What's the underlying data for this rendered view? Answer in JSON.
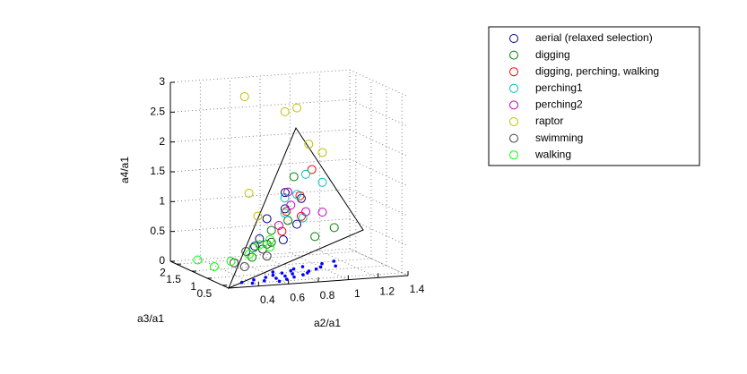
{
  "chart_data": {
    "type": "scatter3d",
    "xlabel": "a2/a1",
    "ylabel": "a3/a1",
    "zlabel": "a4/a1",
    "xlim": [
      0.2,
      1.4
    ],
    "ylim": [
      0.3,
      2.2
    ],
    "zlim": [
      0,
      3
    ],
    "xticks": [
      0.4,
      0.6,
      0.8,
      1,
      1.2,
      1.4
    ],
    "yticks": [
      0.5,
      1,
      1.5,
      2
    ],
    "zticks": [
      0,
      0.5,
      1,
      1.5,
      2,
      2.5,
      3
    ],
    "grid": true,
    "legend": "outside-top-right",
    "series": [
      {
        "name": "aerial (relaxed selection)",
        "color": "#000080",
        "x": [
          0.55,
          0.62,
          0.7,
          0.75,
          0.8,
          0.68,
          0.58,
          0.85
        ],
        "y": [
          1,
          1.1,
          0.9,
          1.2,
          1,
          0.8,
          1.3,
          1.1
        ],
        "z": [
          0.6,
          0.9,
          1.1,
          0.5,
          0.8,
          1.4,
          0.4,
          1.2
        ]
      },
      {
        "name": "digging",
        "color": "#008000",
        "x": [
          0.5,
          0.6,
          0.65,
          0.72,
          0.78,
          0.55,
          0.9,
          1.05
        ],
        "y": [
          1,
          1,
          1.1,
          0.9,
          1,
          1.2,
          0.9,
          1
        ],
        "z": [
          0.3,
          0.5,
          0.7,
          0.9,
          1.6,
          0.4,
          0.6,
          0.7
        ]
      },
      {
        "name": "digging, perching, walking",
        "color": "#ff0000",
        "x": [
          0.7,
          0.75,
          0.8,
          0.9,
          0.85
        ],
        "y": [
          1,
          1.1,
          0.9,
          1,
          1.1
        ],
        "z": [
          0.7,
          1,
          1.3,
          1.7,
          0.9
        ]
      },
      {
        "name": "perching1",
        "color": "#00bfbf",
        "x": [
          0.72,
          0.8,
          0.88,
          0.95,
          0.76,
          0.84
        ],
        "y": [
          1,
          1,
          1.1,
          0.9,
          1.2,
          1
        ],
        "z": [
          1,
          1.3,
          1.6,
          1.5,
          1.2,
          0.9
        ]
      },
      {
        "name": "perching2",
        "color": "#bf00bf",
        "x": [
          0.68,
          0.78,
          0.86,
          0.95,
          0.74
        ],
        "y": [
          1,
          1.1,
          1,
          0.9,
          1
        ],
        "z": [
          0.8,
          1.1,
          1,
          1,
          1.35
        ]
      },
      {
        "name": "raptor",
        "color": "#bfbf00",
        "x": [
          0.45,
          0.5,
          0.72,
          0.8,
          0.9,
          0.95,
          0.6
        ],
        "y": [
          1,
          1.1,
          1,
          1,
          1.1,
          0.9,
          1.3
        ],
        "z": [
          3,
          1.35,
          2.7,
          2.75,
          2.1,
          2,
          0.9
        ]
      },
      {
        "name": "swimming",
        "color": "#404040",
        "x": [
          0.4,
          0.45,
          0.5,
          0.55,
          0.6,
          0.65
        ],
        "y": [
          1.1,
          1,
          1.2,
          0.9,
          1,
          1.1
        ],
        "z": [
          0.2,
          0.15,
          0.35,
          0.45,
          0.3,
          0.5
        ]
      },
      {
        "name": "walking",
        "color": "#00ff00",
        "x": [
          0.3,
          0.35,
          0.4,
          0.48,
          0.55,
          0.6,
          0.62
        ],
        "y": [
          1.8,
          1.5,
          1.2,
          1,
          1,
          0.9,
          1
        ],
        "z": [
          0.1,
          0.05,
          0.2,
          0.35,
          0.5,
          0.6,
          0.45
        ]
      }
    ],
    "floor_points": {
      "color": "#0000ff",
      "x": [
        0.35,
        0.4,
        0.45,
        0.5,
        0.55,
        0.6,
        0.62,
        0.65,
        0.68,
        0.7,
        0.72,
        0.75,
        0.78,
        0.8,
        0.82,
        0.85,
        0.88,
        0.9,
        0.95,
        1,
        1.05,
        1.1,
        1.15,
        0.58,
        0.66
      ],
      "y": [
        0.6,
        0.5,
        0.7,
        0.6,
        0.8,
        0.7,
        0.9,
        0.6,
        0.8,
        1,
        0.7,
        0.9,
        1.1,
        0.8,
        1.2,
        0.9,
        1,
        1.3,
        1.1,
        1.2,
        1.4,
        1.2,
        1.5,
        0.5,
        1.1
      ]
    }
  }
}
